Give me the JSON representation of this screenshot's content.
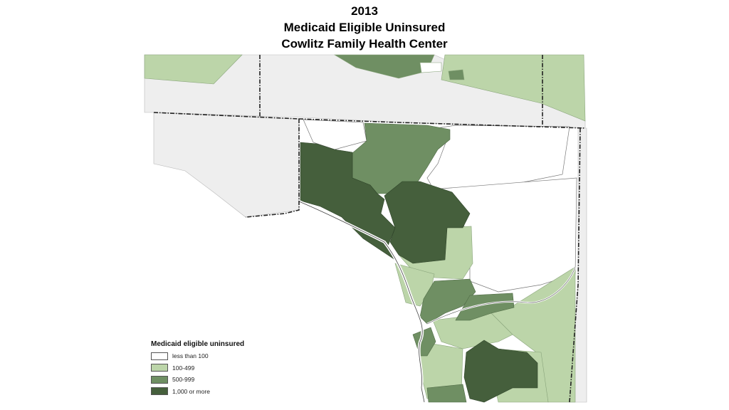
{
  "title": {
    "line1": "2013",
    "line2": "Medicaid Eligible Uninsured",
    "line3": "Cowlitz Family Health Center"
  },
  "legend": {
    "title": "Medicaid eligible uninsured",
    "items": [
      {
        "label": "less than 100",
        "color": "#ffffff"
      },
      {
        "label": "100-499",
        "color": "#bcd5a9"
      },
      {
        "label": "500-999",
        "color": "#6f8f63"
      },
      {
        "label": "1,000 or more",
        "color": "#455f3c"
      }
    ]
  },
  "colors": {
    "background_land": "#eeeeee",
    "border": "#222222",
    "river": "#ffffff"
  }
}
